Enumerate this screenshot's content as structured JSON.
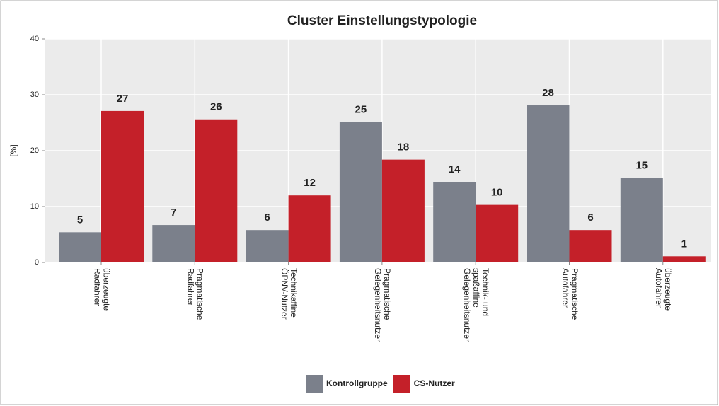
{
  "chart_data": {
    "type": "bar",
    "title": "Cluster Einstellungstypologie",
    "y_label": "[%]",
    "categories": [
      [
        "überzeugte",
        "Radfahrer"
      ],
      [
        "Pragmatische",
        "Radfahrer"
      ],
      [
        "Technikaffine",
        "ÖPNV-Nutzer"
      ],
      [
        "Pragmatische",
        "Gelegenheitsnutzer"
      ],
      [
        "Technik- und",
        "spaßaffine",
        "Gelegenheitsnutzer"
      ],
      [
        "Pragmatische",
        "Autofahrer"
      ],
      [
        "überzeugte",
        "Autofahrer"
      ]
    ],
    "series": [
      {
        "name": "Kontrollgruppe",
        "color": "#7b808b",
        "values": [
          5.4,
          6.7,
          5.8,
          25.1,
          14.4,
          28.1,
          15.1
        ],
        "value_labels": [
          "5",
          "7",
          "6",
          "25",
          "14",
          "28",
          "15"
        ]
      },
      {
        "name": "CS-Nutzer",
        "color": "#c42029",
        "values": [
          27.1,
          25.6,
          12.0,
          18.4,
          10.3,
          5.8,
          1.1
        ],
        "value_labels": [
          "27",
          "26",
          "12",
          "18",
          "10",
          "6",
          "1"
        ]
      }
    ],
    "ylim": [
      0,
      40
    ],
    "yticks": [
      0,
      10,
      20,
      30,
      40
    ],
    "grid": true,
    "legend": "bottom"
  }
}
